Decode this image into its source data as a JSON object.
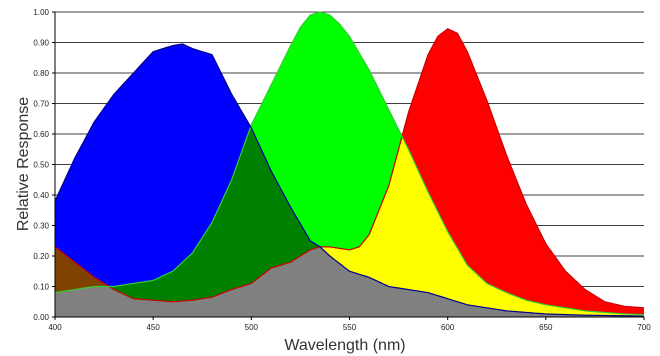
{
  "chart_data": {
    "type": "area",
    "title": "",
    "xlabel": "Wavelength (nm)",
    "ylabel": "Relative Response",
    "xlim": [
      400,
      700
    ],
    "ylim": [
      0,
      1.0
    ],
    "x_ticks": [
      "400",
      "450",
      "500",
      "550",
      "600",
      "650",
      "700"
    ],
    "y_ticks": [
      "0.00",
      "0.10",
      "0.20",
      "0.30",
      "0.40",
      "0.50",
      "0.60",
      "0.70",
      "0.80",
      "0.90",
      "1.00"
    ],
    "grid": "horizontal",
    "legend": "none",
    "colors": {
      "blue": "#0000FF",
      "green": "#00FF00",
      "red": "#FF0000",
      "blue_green_overlap": "#008000",
      "green_red_overlap": "#FFFF00",
      "blue_red_overlap": "#804000",
      "all_overlap": "#808080"
    },
    "series": [
      {
        "color": "blue",
        "x": [
          400,
          410,
          420,
          430,
          440,
          450,
          460,
          465,
          470,
          480,
          490,
          500,
          510,
          520,
          530,
          535,
          540,
          550,
          560,
          570,
          580,
          590,
          600,
          610,
          620,
          630,
          640,
          650,
          660,
          670,
          680,
          690,
          700
        ],
        "y": [
          0.38,
          0.52,
          0.64,
          0.73,
          0.8,
          0.87,
          0.89,
          0.895,
          0.88,
          0.86,
          0.73,
          0.62,
          0.48,
          0.36,
          0.25,
          0.23,
          0.2,
          0.15,
          0.13,
          0.1,
          0.09,
          0.08,
          0.06,
          0.04,
          0.03,
          0.02,
          0.015,
          0.01,
          0.008,
          0.006,
          0.005,
          0.004,
          0.003
        ]
      },
      {
        "color": "green",
        "x": [
          400,
          410,
          420,
          430,
          440,
          450,
          460,
          470,
          480,
          490,
          500,
          510,
          520,
          525,
          530,
          535,
          540,
          545,
          550,
          560,
          570,
          580,
          590,
          600,
          610,
          620,
          630,
          640,
          650,
          660,
          670,
          680,
          690,
          700
        ],
        "y": [
          0.08,
          0.09,
          0.1,
          0.1,
          0.11,
          0.12,
          0.15,
          0.21,
          0.31,
          0.45,
          0.63,
          0.76,
          0.89,
          0.95,
          0.99,
          1.0,
          0.99,
          0.96,
          0.92,
          0.81,
          0.68,
          0.55,
          0.41,
          0.28,
          0.17,
          0.11,
          0.08,
          0.055,
          0.04,
          0.03,
          0.02,
          0.015,
          0.01,
          0.008
        ]
      },
      {
        "color": "red",
        "x": [
          400,
          410,
          420,
          430,
          440,
          450,
          460,
          470,
          480,
          490,
          500,
          510,
          520,
          530,
          535,
          540,
          550,
          555,
          560,
          570,
          575,
          580,
          590,
          595,
          600,
          605,
          610,
          620,
          630,
          640,
          650,
          660,
          670,
          680,
          690,
          700
        ],
        "y": [
          0.23,
          0.18,
          0.13,
          0.09,
          0.06,
          0.055,
          0.05,
          0.055,
          0.065,
          0.09,
          0.11,
          0.16,
          0.18,
          0.22,
          0.23,
          0.23,
          0.22,
          0.23,
          0.27,
          0.43,
          0.55,
          0.67,
          0.86,
          0.92,
          0.945,
          0.93,
          0.87,
          0.71,
          0.53,
          0.37,
          0.24,
          0.15,
          0.09,
          0.05,
          0.035,
          0.03
        ]
      }
    ]
  }
}
